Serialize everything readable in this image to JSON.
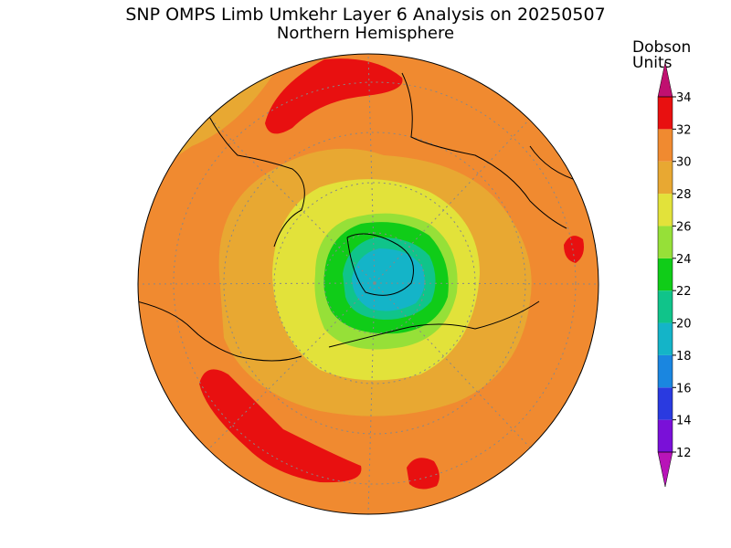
{
  "header": {
    "title": "SNP OMPS Limb Umkehr Layer 6 Analysis on 20250507",
    "subtitle": "Northern Hemisphere"
  },
  "colorbar": {
    "label": [
      "Dobson",
      "Units"
    ],
    "ticks": [
      12,
      14,
      16,
      18,
      20,
      22,
      24,
      26,
      28,
      30,
      32,
      34
    ],
    "colors": [
      "#7a10d8",
      "#2a3ae0",
      "#1a86e0",
      "#14b4c8",
      "#10c48a",
      "#10cc18",
      "#96e038",
      "#e2e23a",
      "#e8a832",
      "#f08a30",
      "#e81010"
    ],
    "under_color": "#b814b8",
    "over_color": "#c01070"
  }
}
